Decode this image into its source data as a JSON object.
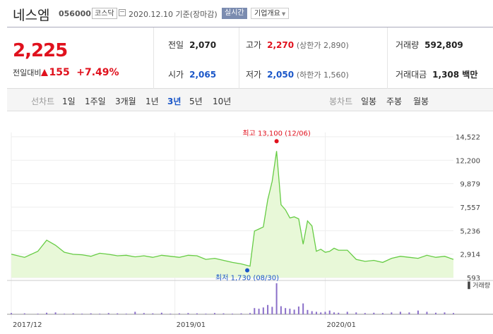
{
  "header": {
    "name": "네스엠",
    "code": "056000",
    "market": "코스닥",
    "date": "2020.12.10 기준(장마감)",
    "realtime": "실시간",
    "overview": "기업개요"
  },
  "quote": {
    "price": "2,225",
    "change_label": "전일대비",
    "change": "155",
    "change_pct": "+7.49%",
    "prev_label": "전일",
    "prev": "2,070",
    "open_label": "시가",
    "open": "2,065",
    "high_label": "고가",
    "high": "2,270",
    "upper_limit": "(상한가 2,890)",
    "low_label": "저가",
    "low": "2,050",
    "lower_limit": "(하한가 1,560)",
    "volume_label": "거래량",
    "volume": "592,809",
    "amount_label": "거래대금",
    "amount": "1,308 백만"
  },
  "periods": {
    "line_chart_label": "선차트",
    "items": [
      "1일",
      "1주일",
      "3개월",
      "1년",
      "3년",
      "5년",
      "10년"
    ],
    "selected": "3년",
    "candle_label": "봉차트",
    "candle_items": [
      "일봉",
      "주봉",
      "월봉"
    ]
  },
  "colors": {
    "red": "#e0111d",
    "blue": "#1a56c8",
    "line": "#66cc44",
    "area": "#e8f8d8",
    "volume": "#8a6fc9"
  },
  "chart_data": {
    "type": "area",
    "x_tick_labels": [
      "2017/12",
      "2019/01",
      "2020/01"
    ],
    "y_tick_labels": [
      "14,522",
      "12,200",
      "9,879",
      "7,557",
      "5,236",
      "2,914",
      "593"
    ],
    "ylim": [
      593,
      14522
    ],
    "volume_label": "거래량",
    "high_annotation": "최고 13,100 (12/06)",
    "low_annotation": "최저 1,730 (08/30)",
    "x": [
      0,
      3,
      6,
      8,
      10,
      12,
      14,
      16,
      18,
      20,
      22,
      24,
      26,
      28,
      30,
      32,
      34,
      36,
      38,
      40,
      42,
      44,
      46,
      48,
      50,
      52,
      54,
      55,
      56,
      57,
      58,
      59,
      60,
      61,
      62,
      63,
      64,
      65,
      66,
      67,
      68,
      69,
      70,
      71,
      72,
      73,
      74,
      76,
      78,
      80,
      82,
      84,
      86,
      88,
      90,
      92,
      94,
      96,
      98,
      100
    ],
    "values": [
      2914,
      2600,
      3200,
      4300,
      3800,
      3100,
      2900,
      2850,
      2700,
      3000,
      2900,
      2750,
      2800,
      2650,
      2750,
      2600,
      2800,
      2700,
      2600,
      2800,
      2750,
      2400,
      2500,
      2300,
      2100,
      1950,
      1730,
      5200,
      5400,
      5600,
      8300,
      10100,
      13100,
      7800,
      7300,
      6500,
      6600,
      6400,
      3900,
      6200,
      5700,
      3200,
      3400,
      3100,
      3200,
      3500,
      3300,
      3300,
      2400,
      2200,
      2300,
      2100,
      2500,
      2700,
      2600,
      2500,
      2800,
      2600,
      2700,
      2400
    ],
    "volumes": [
      4,
      3,
      2,
      5,
      6,
      2,
      3,
      2,
      3,
      2,
      4,
      3,
      2,
      8,
      4,
      3,
      5,
      2,
      3,
      4,
      3,
      2,
      4,
      3,
      2,
      3,
      4,
      20,
      18,
      22,
      30,
      24,
      100,
      26,
      20,
      18,
      15,
      25,
      35,
      14,
      10,
      8,
      6,
      8,
      12,
      6,
      5,
      8,
      6,
      4,
      5,
      4,
      6,
      8,
      6,
      12,
      8,
      5,
      6,
      4
    ]
  }
}
